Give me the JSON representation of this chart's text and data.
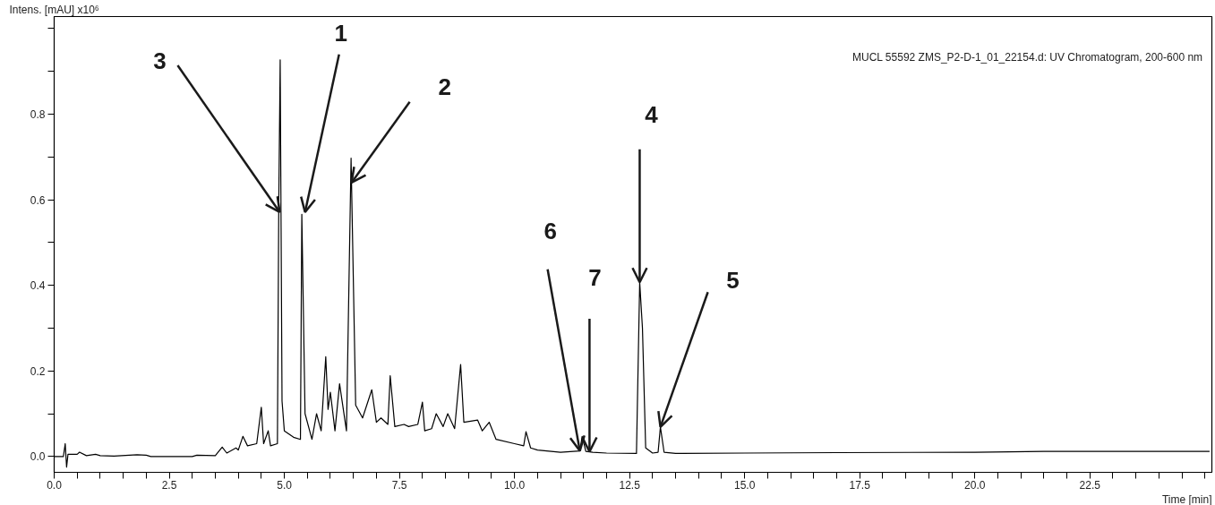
{
  "chart_data": {
    "type": "line",
    "title": "MUCL 55592 ZMS_P2-D-1_01_22154.d: UV Chromatogram, 200-600 nm",
    "xlabel": "Time [min]",
    "ylabel": "Intens. [mAU] x10⁶",
    "xlim": [
      0,
      25.15
    ],
    "ylim": [
      -0.037,
      1.028
    ],
    "xticks": [
      {
        "value": 0,
        "label": "0.0"
      },
      {
        "value": 0.5,
        "label": null
      },
      {
        "value": 1,
        "label": null
      },
      {
        "value": 1.5,
        "label": null
      },
      {
        "value": 2,
        "label": null
      },
      {
        "value": 2.5,
        "label": "2.5"
      },
      {
        "value": 3,
        "label": null
      },
      {
        "value": 3.5,
        "label": null
      },
      {
        "value": 4,
        "label": null
      },
      {
        "value": 4.5,
        "label": null
      },
      {
        "value": 5,
        "label": "5.0"
      },
      {
        "value": 5.5,
        "label": null
      },
      {
        "value": 6,
        "label": null
      },
      {
        "value": 6.5,
        "label": null
      },
      {
        "value": 7,
        "label": null
      },
      {
        "value": 7.5,
        "label": "7.5"
      },
      {
        "value": 8,
        "label": null
      },
      {
        "value": 8.5,
        "label": null
      },
      {
        "value": 9,
        "label": null
      },
      {
        "value": 9.5,
        "label": null
      },
      {
        "value": 10,
        "label": "10.0"
      },
      {
        "value": 10.5,
        "label": null
      },
      {
        "value": 11,
        "label": null
      },
      {
        "value": 11.5,
        "label": null
      },
      {
        "value": 12,
        "label": null
      },
      {
        "value": 12.5,
        "label": "12.5"
      },
      {
        "value": 13,
        "label": null
      },
      {
        "value": 13.5,
        "label": null
      },
      {
        "value": 14,
        "label": null
      },
      {
        "value": 14.5,
        "label": null
      },
      {
        "value": 15,
        "label": "15.0"
      },
      {
        "value": 15.5,
        "label": null
      },
      {
        "value": 16,
        "label": null
      },
      {
        "value": 16.5,
        "label": null
      },
      {
        "value": 17,
        "label": null
      },
      {
        "value": 17.5,
        "label": "17.5"
      },
      {
        "value": 18,
        "label": null
      },
      {
        "value": 18.5,
        "label": null
      },
      {
        "value": 19,
        "label": null
      },
      {
        "value": 19.5,
        "label": null
      },
      {
        "value": 20,
        "label": "20.0"
      },
      {
        "value": 20.5,
        "label": null
      },
      {
        "value": 21,
        "label": null
      },
      {
        "value": 21.5,
        "label": null
      },
      {
        "value": 22,
        "label": null
      },
      {
        "value": 22.5,
        "label": "22.5"
      },
      {
        "value": 23,
        "label": null
      },
      {
        "value": 23.5,
        "label": null
      },
      {
        "value": 24,
        "label": null
      },
      {
        "value": 24.5,
        "label": null
      },
      {
        "value": 25,
        "label": null
      }
    ],
    "yticks": [
      {
        "value": 0,
        "label": "0.0"
      },
      {
        "value": 0.1,
        "label": null
      },
      {
        "value": 0.2,
        "label": "0.2"
      },
      {
        "value": 0.3,
        "label": null
      },
      {
        "value": 0.4,
        "label": "0.4"
      },
      {
        "value": 0.5,
        "label": null
      },
      {
        "value": 0.6,
        "label": "0.6"
      },
      {
        "value": 0.7,
        "label": null
      },
      {
        "value": 0.8,
        "label": "0.8"
      },
      {
        "value": 0.9,
        "label": null
      },
      {
        "value": 1.0,
        "label": null
      }
    ],
    "series": [
      {
        "color": "#000000",
        "x": [
          0,
          0.2,
          0.24,
          0.27,
          0.3,
          0.5,
          0.55,
          0.7,
          0.9,
          1.0,
          1.3,
          1.8,
          2.0,
          2.1,
          3.0,
          3.1,
          3.5,
          3.65,
          3.75,
          3.95,
          4.0,
          4.1,
          4.2,
          4.4,
          4.5,
          4.55,
          4.65,
          4.7,
          4.85,
          4.88,
          4.91,
          4.95,
          5.0,
          5.2,
          5.35,
          5.38,
          5.45,
          5.6,
          5.7,
          5.8,
          5.9,
          5.95,
          6.0,
          6.1,
          6.2,
          6.35,
          6.45,
          6.55,
          6.7,
          6.9,
          7.0,
          7.1,
          7.25,
          7.3,
          7.4,
          7.6,
          7.7,
          7.9,
          8.0,
          8.05,
          8.2,
          8.3,
          8.45,
          8.55,
          8.7,
          8.83,
          8.9,
          9.2,
          9.3,
          9.45,
          9.6,
          10.0,
          10.2,
          10.25,
          10.35,
          10.5,
          11.0,
          11.42,
          11.47,
          11.55,
          11.7,
          12.0,
          12.65,
          12.72,
          12.78,
          12.85,
          13.0,
          13.12,
          13.17,
          13.25,
          13.5,
          15.0,
          17.0,
          20.0,
          21.5,
          25.1
        ],
        "values": [
          0,
          0,
          0.03,
          -0.025,
          0.005,
          0.005,
          0.01,
          0.002,
          0.005,
          0.002,
          0.001,
          0.004,
          0.003,
          0,
          0,
          0.003,
          0.002,
          0.022,
          0.008,
          0.02,
          0.015,
          0.047,
          0.025,
          0.03,
          0.115,
          0.03,
          0.06,
          0.025,
          0.03,
          0.6,
          0.927,
          0.13,
          0.06,
          0.045,
          0.04,
          0.566,
          0.1,
          0.04,
          0.1,
          0.06,
          0.233,
          0.11,
          0.15,
          0.06,
          0.17,
          0.06,
          0.697,
          0.12,
          0.09,
          0.156,
          0.08,
          0.09,
          0.075,
          0.189,
          0.07,
          0.075,
          0.07,
          0.075,
          0.127,
          0.06,
          0.065,
          0.1,
          0.07,
          0.1,
          0.065,
          0.215,
          0.08,
          0.085,
          0.06,
          0.08,
          0.04,
          0.03,
          0.025,
          0.058,
          0.02,
          0.015,
          0.01,
          0.013,
          0.047,
          0.012,
          0.01,
          0.008,
          0.007,
          0.407,
          0.3,
          0.02,
          0.008,
          0.01,
          0.069,
          0.01,
          0.007,
          0.008,
          0.009,
          0.01,
          0.012,
          0.012
        ]
      }
    ],
    "annotations": [
      {
        "text": "3",
        "x": 4.9,
        "y": 0.571
      },
      {
        "text": "1",
        "x": 5.45,
        "y": 0.571
      },
      {
        "text": "2",
        "x": 6.46,
        "y": 0.64
      },
      {
        "text": "4",
        "x": 12.72,
        "y": 0.407
      },
      {
        "text": "6",
        "x": 11.42,
        "y": 0.013
      },
      {
        "text": "7",
        "x": 11.63,
        "y": 0.011
      },
      {
        "text": "5",
        "x": 13.17,
        "y": 0.069
      }
    ]
  }
}
